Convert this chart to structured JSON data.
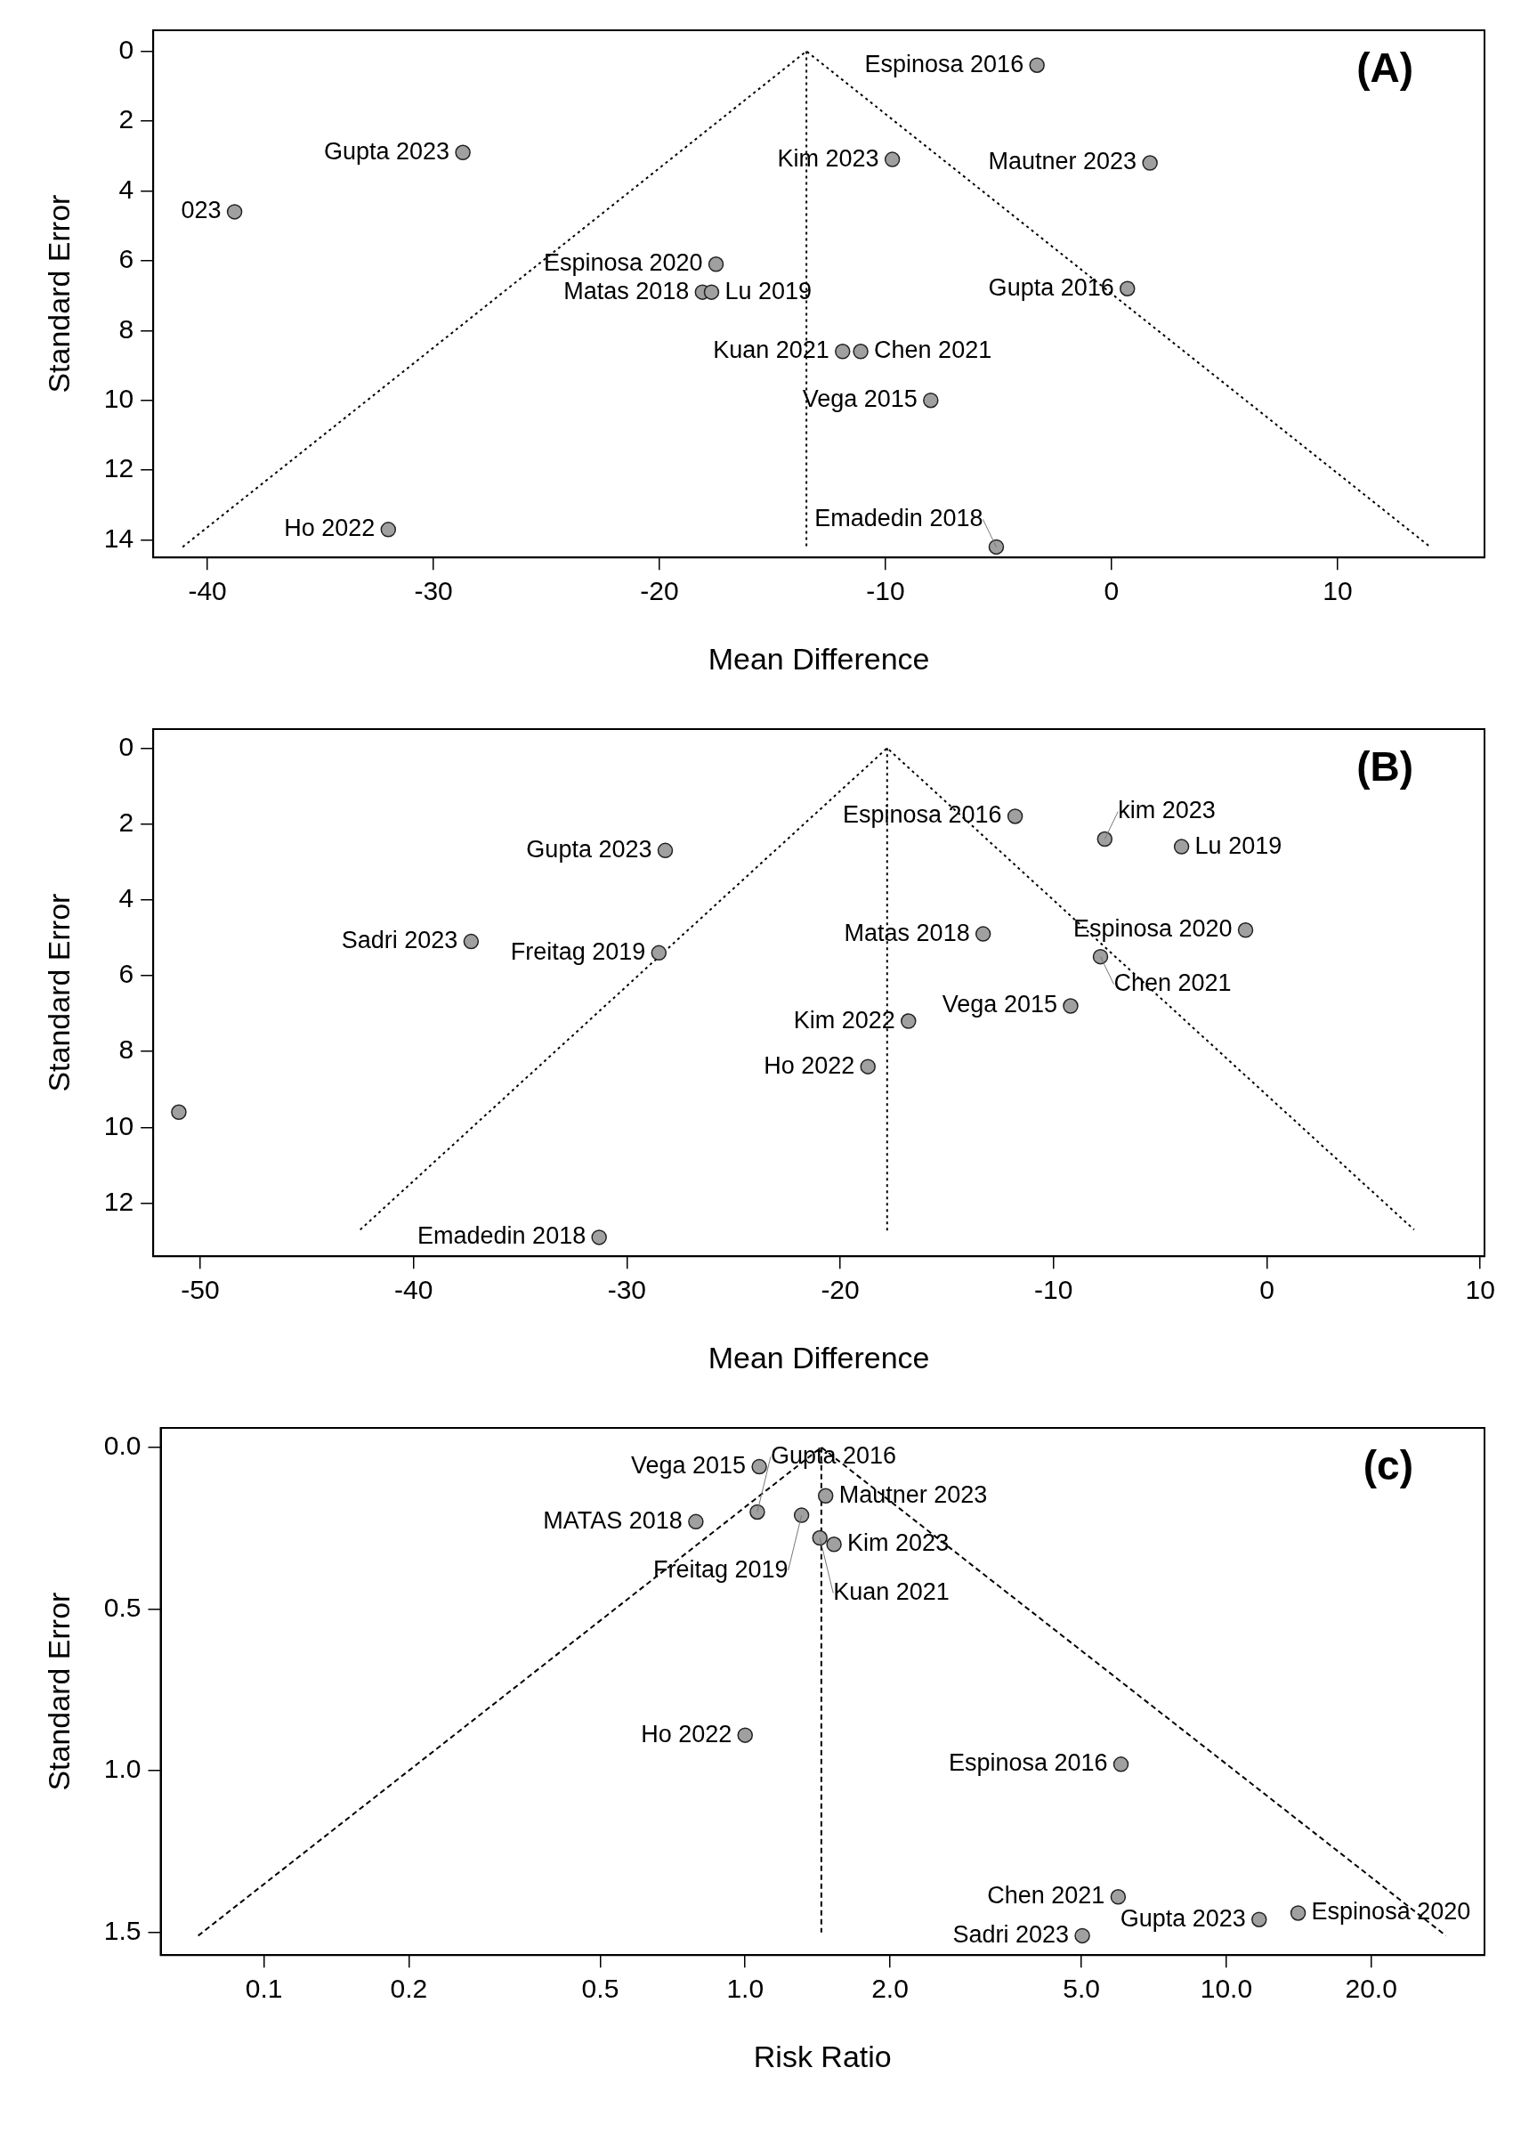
{
  "chart_data": [
    {
      "type": "scatter",
      "xlabel": "Mean Difference",
      "ylabel": "Standard Error",
      "xlim": [
        -42.4,
        16.5
      ],
      "ylim": [
        14.5,
        -0.6
      ],
      "xticks": [
        -40,
        -30,
        -20,
        -10,
        0,
        10
      ],
      "yticks": [
        0,
        2,
        4,
        6,
        8,
        10,
        12,
        14
      ],
      "annotations": [
        "(A)",
        {
          "text": "Espinosa 2016",
          "x": -3.3,
          "y": 0.4
        },
        {
          "text": "Gupta 2023",
          "x": -28.7,
          "y": 2.9
        },
        {
          "text": "023",
          "x": -38.8,
          "y": 4.6
        },
        {
          "text": "Kim 2023",
          "x": -9.7,
          "y": 3.1
        },
        {
          "text": "Mautner 2023",
          "x": 1.7,
          "y": 3.2
        },
        {
          "text": "Espinosa 2020",
          "x": -17.5,
          "y": 6.1
        },
        {
          "text": "Matas 2018",
          "x": -18.1,
          "y": 6.9
        },
        {
          "text": "Lu 2019",
          "x": -17.7,
          "y": 6.9
        },
        {
          "text": "Gupta 2016",
          "x": 0.7,
          "y": 6.8
        },
        {
          "text": "Kuan 2021",
          "x": -11.9,
          "y": 8.6
        },
        {
          "text": "Chen 2021",
          "x": -11.1,
          "y": 8.6
        },
        {
          "text": "Vega 2015",
          "x": -8.0,
          "y": 10.0
        },
        {
          "text": "Ho 2022",
          "x": -32.0,
          "y": 13.7
        },
        {
          "text": "Emadedin 2018",
          "x": -5.1,
          "y": 14.2
        }
      ],
      "series": [
        {
          "color": "#a0a0a0",
          "marker": "circle",
          "x": [
            -3.3,
            -28.7,
            -38.8,
            -9.7,
            1.7,
            -17.5,
            -18.1,
            -17.7,
            0.7,
            -11.9,
            -11.1,
            -8.0,
            -32.0,
            -5.1
          ],
          "values": [
            0.4,
            2.9,
            4.6,
            3.1,
            3.2,
            6.1,
            6.9,
            6.9,
            6.8,
            8.6,
            8.6,
            10.0,
            13.7,
            14.2
          ]
        },
        {
          "type": "line",
          "color": "#000000",
          "line_style": "dotted",
          "marker": "none",
          "x": [
            -41.1,
            -13.5,
            14.1
          ],
          "values": [
            14.2,
            0,
            14.2
          ]
        },
        {
          "type": "line",
          "color": "#000000",
          "line_style": "dotted",
          "marker": "none",
          "x": [
            -13.5,
            -13.5
          ],
          "values": [
            0,
            14.2
          ]
        }
      ]
    },
    {
      "type": "scatter",
      "xlabel": "Mean Difference",
      "ylabel": "Standard Error",
      "xlim": [
        -52.2,
        10.2
      ],
      "ylim": [
        13.4,
        -0.5
      ],
      "xticks": [
        -50,
        -40,
        -30,
        -20,
        -10,
        0,
        10
      ],
      "yticks": [
        0,
        2,
        4,
        6,
        8,
        10,
        12
      ],
      "annotations": [
        "(B)",
        {
          "text": "Espinosa 2016",
          "x": -11.8,
          "y": 1.8
        },
        {
          "text": "kim 2023",
          "x": -7.6,
          "y": 2.4
        },
        {
          "text": "Lu 2019",
          "x": -4.0,
          "y": 2.6
        },
        {
          "text": "Gupta 2023",
          "x": -28.2,
          "y": 2.7
        },
        {
          "text": "Matas 2018",
          "x": -13.3,
          "y": 4.9
        },
        {
          "text": "Espinosa 2020",
          "x": -1.0,
          "y": 4.8
        },
        {
          "text": "Sadri 2023",
          "x": -37.3,
          "y": 5.1
        },
        {
          "text": "Freitag 2019",
          "x": -28.5,
          "y": 5.4
        },
        {
          "text": "Chen 2021",
          "x": -7.8,
          "y": 5.5
        },
        {
          "text": "Vega 2015",
          "x": -9.2,
          "y": 6.8
        },
        {
          "text": "Kim 2022",
          "x": -16.8,
          "y": 7.2
        },
        {
          "text": "Ho 2022",
          "x": -18.7,
          "y": 8.4
        },
        {
          "text": "Emadedin 2018",
          "x": -31.3,
          "y": 12.9
        }
      ],
      "series": [
        {
          "color": "#a0a0a0",
          "marker": "circle",
          "x": [
            -11.8,
            -7.6,
            -4.0,
            -28.2,
            -13.3,
            -1.0,
            -37.3,
            -28.5,
            -7.8,
            -9.2,
            -16.8,
            -18.7,
            -51.0,
            -31.3
          ],
          "values": [
            1.8,
            2.4,
            2.6,
            2.7,
            4.9,
            4.8,
            5.1,
            5.4,
            5.5,
            6.8,
            7.2,
            8.4,
            9.6,
            12.9
          ]
        },
        {
          "type": "line",
          "color": "#000000",
          "line_style": "dotted",
          "marker": "none",
          "x": [
            -42.5,
            -17.8,
            6.9
          ],
          "values": [
            12.7,
            0,
            12.7
          ]
        },
        {
          "type": "line",
          "color": "#000000",
          "line_style": "dotted",
          "marker": "none",
          "x": [
            -17.8,
            -17.8
          ],
          "values": [
            0,
            12.8
          ]
        }
      ]
    },
    {
      "type": "scatter",
      "xlabel": "Risk Ratio",
      "ylabel": "Standard Error",
      "log": "x",
      "xlim": [
        0.061,
        34.4
      ],
      "ylim": [
        1.57,
        -0.06
      ],
      "xticks": [
        0.1,
        0.2,
        0.5,
        {
          "value": 1,
          "label": "1.0"
        },
        {
          "value": 2,
          "label": "2.0"
        },
        {
          "value": 5,
          "label": "5.0"
        },
        {
          "value": 10,
          "label": "10.0"
        },
        {
          "value": 20,
          "label": "20.0"
        }
      ],
      "yticks": [
        {
          "value": 0,
          "label": "0.0"
        },
        0.5,
        {
          "value": 1,
          "label": "1.0"
        },
        1.5
      ],
      "annotations": [
        "(c)",
        {
          "text": "Vega 2015",
          "x": 1.07,
          "y": 0.06
        },
        {
          "text": "Mautner 2023",
          "x": 1.47,
          "y": 0.15
        },
        {
          "text": "Gupta 2016",
          "x": 1.06,
          "y": 0.2
        },
        {
          "text": "MATAS 2018",
          "x": 0.79,
          "y": 0.23
        },
        {
          "text": "Freitag 2019",
          "x": 1.31,
          "y": 0.21
        },
        {
          "text": "Kuan 2021",
          "x": 1.43,
          "y": 0.28
        },
        {
          "text": "Kim 2023",
          "x": 1.53,
          "y": 0.3
        },
        {
          "text": "Ho 2022",
          "x": 1.0,
          "y": 0.89
        },
        {
          "text": "Espinosa 2016",
          "x": 6.04,
          "y": 0.98
        },
        {
          "text": "Chen 2021",
          "x": 5.96,
          "y": 1.39
        },
        {
          "text": "Espinosa 2020",
          "x": 14.1,
          "y": 1.44
        },
        {
          "text": "Gupta 2023",
          "x": 11.7,
          "y": 1.46
        },
        {
          "text": "Sadri 2023",
          "x": 5.02,
          "y": 1.51
        }
      ],
      "series": [
        {
          "color": "#a0a0a0",
          "marker": "circle",
          "x": [
            1.07,
            1.47,
            1.06,
            0.79,
            1.31,
            1.43,
            1.53,
            1.0,
            6.04,
            5.96,
            14.1,
            11.7,
            5.02
          ],
          "values": [
            0.06,
            0.15,
            0.2,
            0.23,
            0.21,
            0.28,
            0.3,
            0.89,
            0.98,
            1.39,
            1.44,
            1.46,
            1.51
          ]
        },
        {
          "type": "line",
          "color": "#000000",
          "line_style": "dashed",
          "marker": "none",
          "x": [
            0.073,
            1.44,
            28.6
          ],
          "values": [
            1.51,
            0,
            1.51
          ]
        },
        {
          "type": "line",
          "color": "#000000",
          "line_style": "dashed",
          "marker": "none",
          "x": [
            1.44,
            1.44
          ],
          "values": [
            0,
            1.5
          ]
        }
      ]
    }
  ]
}
